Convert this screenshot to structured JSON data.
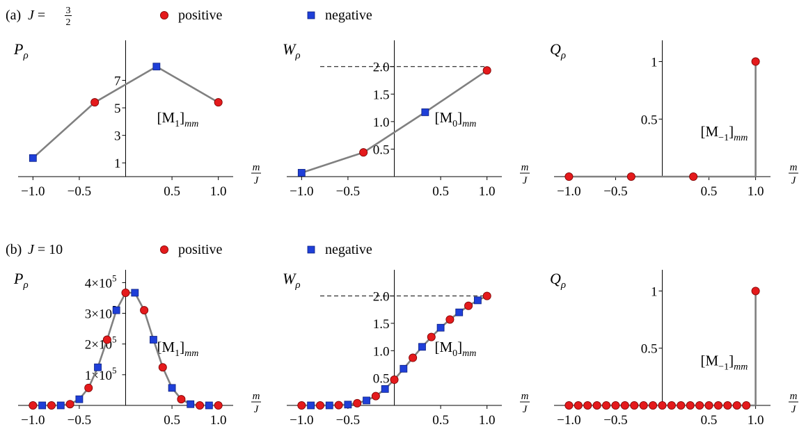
{
  "rows": [
    {
      "label": "(a)",
      "j_text": "J = 3/2",
      "j_value": 1.5,
      "legend": [
        {
          "label": "positive",
          "marker": "circle",
          "color": "#e41a1c"
        },
        {
          "label": "negative",
          "marker": "square",
          "color": "#1f3fd8"
        }
      ]
    },
    {
      "label": "(b)",
      "j_text": "J = 10",
      "j_value": 10,
      "legend": [
        {
          "label": "positive",
          "marker": "circle",
          "color": "#e41a1c"
        },
        {
          "label": "negative",
          "marker": "square",
          "color": "#1f3fd8"
        }
      ]
    }
  ],
  "axis_x_label": {
    "num": "m",
    "den": "J"
  },
  "chart_data": [
    {
      "type": "line",
      "panel": "a-P",
      "ylabel": {
        "main": "P",
        "sub": "ρ"
      },
      "annotation": {
        "main": "[M",
        "sub1": "1",
        "close": "]",
        "sub2": "mm"
      },
      "xlim": [
        -1.1,
        1.1
      ],
      "ylim": [
        0,
        9.2
      ],
      "x_ticks": [
        {
          "v": -1.0,
          "t": "−1.0"
        },
        {
          "v": -0.5,
          "t": "−0.5"
        },
        {
          "v": 0.5,
          "t": "0.5"
        },
        {
          "v": 1.0,
          "t": "1.0"
        }
      ],
      "y_ticks": [
        {
          "v": 1,
          "t": "1"
        },
        {
          "v": 3,
          "t": "3"
        },
        {
          "v": 5,
          "t": "5"
        },
        {
          "v": 7,
          "t": "7"
        }
      ],
      "points": [
        {
          "x": -1.0,
          "y": 1.35,
          "sign": "negative"
        },
        {
          "x": -0.333,
          "y": 5.4,
          "sign": "positive"
        },
        {
          "x": 0.333,
          "y": 8.0,
          "sign": "negative"
        },
        {
          "x": 1.0,
          "y": 5.4,
          "sign": "positive"
        }
      ]
    },
    {
      "type": "line",
      "panel": "a-W",
      "ylabel": {
        "main": "W",
        "sub": "ρ"
      },
      "annotation": {
        "main": "[M",
        "sub1": "0",
        "close": "]",
        "sub2": "mm"
      },
      "xlim": [
        -1.1,
        1.1
      ],
      "ylim": [
        0,
        2.3
      ],
      "reference_line": 2.0,
      "x_ticks": [
        {
          "v": -1.0,
          "t": "−1.0"
        },
        {
          "v": -0.5,
          "t": "−0.5"
        },
        {
          "v": 0.5,
          "t": "0.5"
        },
        {
          "v": 1.0,
          "t": "1.0"
        }
      ],
      "y_ticks": [
        {
          "v": 0.5,
          "t": "0.5"
        },
        {
          "v": 1.0,
          "t": "1.0"
        },
        {
          "v": 1.5,
          "t": "1.5"
        },
        {
          "v": 2.0,
          "t": "2.0"
        }
      ],
      "points": [
        {
          "x": -1.0,
          "y": 0.07,
          "sign": "negative"
        },
        {
          "x": -0.333,
          "y": 0.44,
          "sign": "positive"
        },
        {
          "x": 0.333,
          "y": 1.17,
          "sign": "negative"
        },
        {
          "x": 1.0,
          "y": 1.93,
          "sign": "positive"
        }
      ]
    },
    {
      "type": "scatter",
      "panel": "a-Q",
      "ylabel": {
        "main": "Q",
        "sub": "ρ"
      },
      "annotation": {
        "main": "[M",
        "sub1": "−1",
        "close": "]",
        "sub2": "mm"
      },
      "xlim": [
        -1.1,
        1.1
      ],
      "ylim": [
        0,
        1.1
      ],
      "x_ticks": [
        {
          "v": -1.0,
          "t": "−1.0"
        },
        {
          "v": -0.5,
          "t": "−0.5"
        },
        {
          "v": 0.5,
          "t": "0.5"
        },
        {
          "v": 1.0,
          "t": "1.0"
        }
      ],
      "y_ticks": [
        {
          "v": 0.5,
          "t": "0.5"
        },
        {
          "v": 1,
          "t": "1"
        }
      ],
      "points": [
        {
          "x": -1.0,
          "y": 0,
          "sign": "positive"
        },
        {
          "x": -0.333,
          "y": 0,
          "sign": "positive"
        },
        {
          "x": 0.333,
          "y": 0,
          "sign": "positive"
        },
        {
          "x": 1.0,
          "y": 1,
          "sign": "positive"
        }
      ]
    },
    {
      "type": "line",
      "panel": "b-P",
      "ylabel": {
        "main": "P",
        "sub": "ρ"
      },
      "annotation": {
        "main": "[M",
        "sub1": "1",
        "close": "]",
        "sub2": "mm"
      },
      "xlim": [
        -1.1,
        1.1
      ],
      "ylim": [
        0,
        410000
      ],
      "x_ticks": [
        {
          "v": -1.0,
          "t": "−1.0"
        },
        {
          "v": -0.5,
          "t": "−0.5"
        },
        {
          "v": 0.5,
          "t": "0.5"
        },
        {
          "v": 1.0,
          "t": "1.0"
        }
      ],
      "y_ticks": [
        {
          "v": 100000,
          "t": "1×10",
          "exp": "5"
        },
        {
          "v": 200000,
          "t": "2×10",
          "exp": "5"
        },
        {
          "v": 300000,
          "t": "3×10",
          "exp": "5"
        },
        {
          "v": 400000,
          "t": "4×10",
          "exp": "5"
        }
      ],
      "points": [
        {
          "x": -1.0,
          "y": 0,
          "sign": "positive"
        },
        {
          "x": -0.9,
          "y": 0,
          "sign": "negative"
        },
        {
          "x": -0.8,
          "y": 0,
          "sign": "positive"
        },
        {
          "x": -0.7,
          "y": 0,
          "sign": "negative"
        },
        {
          "x": -0.6,
          "y": 4000,
          "sign": "positive"
        },
        {
          "x": -0.5,
          "y": 20000,
          "sign": "negative"
        },
        {
          "x": -0.4,
          "y": 57000,
          "sign": "positive"
        },
        {
          "x": -0.3,
          "y": 124000,
          "sign": "negative"
        },
        {
          "x": -0.2,
          "y": 214000,
          "sign": "positive"
        },
        {
          "x": -0.1,
          "y": 310000,
          "sign": "negative"
        },
        {
          "x": 0.0,
          "y": 367000,
          "sign": "positive"
        },
        {
          "x": 0.1,
          "y": 367000,
          "sign": "negative"
        },
        {
          "x": 0.2,
          "y": 310000,
          "sign": "positive"
        },
        {
          "x": 0.3,
          "y": 214000,
          "sign": "negative"
        },
        {
          "x": 0.4,
          "y": 124000,
          "sign": "positive"
        },
        {
          "x": 0.5,
          "y": 57000,
          "sign": "negative"
        },
        {
          "x": 0.6,
          "y": 20000,
          "sign": "positive"
        },
        {
          "x": 0.7,
          "y": 4000,
          "sign": "negative"
        },
        {
          "x": 0.8,
          "y": 0,
          "sign": "positive"
        },
        {
          "x": 0.9,
          "y": 0,
          "sign": "negative"
        },
        {
          "x": 1.0,
          "y": 0,
          "sign": "positive"
        }
      ]
    },
    {
      "type": "line",
      "panel": "b-W",
      "ylabel": {
        "main": "W",
        "sub": "ρ"
      },
      "annotation": {
        "main": "[M",
        "sub1": "0",
        "close": "]",
        "sub2": "mm"
      },
      "xlim": [
        -1.1,
        1.1
      ],
      "ylim": [
        0,
        2.3
      ],
      "reference_line": 2.0,
      "x_ticks": [
        {
          "v": -1.0,
          "t": "−1.0"
        },
        {
          "v": -0.5,
          "t": "−0.5"
        },
        {
          "v": 0.5,
          "t": "0.5"
        },
        {
          "v": 1.0,
          "t": "1.0"
        }
      ],
      "y_ticks": [
        {
          "v": 0.5,
          "t": "0.5"
        },
        {
          "v": 1.0,
          "t": "1.0"
        },
        {
          "v": 1.5,
          "t": "1.5"
        },
        {
          "v": 2.0,
          "t": "2.0"
        }
      ],
      "points": [
        {
          "x": -1.0,
          "y": 0,
          "sign": "positive"
        },
        {
          "x": -0.9,
          "y": 0,
          "sign": "negative"
        },
        {
          "x": -0.8,
          "y": 0,
          "sign": "positive"
        },
        {
          "x": -0.7,
          "y": 0,
          "sign": "negative"
        },
        {
          "x": -0.6,
          "y": 0.005,
          "sign": "positive"
        },
        {
          "x": -0.5,
          "y": 0.015,
          "sign": "negative"
        },
        {
          "x": -0.4,
          "y": 0.04,
          "sign": "positive"
        },
        {
          "x": -0.3,
          "y": 0.09,
          "sign": "negative"
        },
        {
          "x": -0.2,
          "y": 0.17,
          "sign": "positive"
        },
        {
          "x": -0.1,
          "y": 0.3,
          "sign": "negative"
        },
        {
          "x": 0.0,
          "y": 0.47,
          "sign": "positive"
        },
        {
          "x": 0.1,
          "y": 0.67,
          "sign": "negative"
        },
        {
          "x": 0.2,
          "y": 0.87,
          "sign": "positive"
        },
        {
          "x": 0.3,
          "y": 1.07,
          "sign": "negative"
        },
        {
          "x": 0.4,
          "y": 1.25,
          "sign": "positive"
        },
        {
          "x": 0.5,
          "y": 1.42,
          "sign": "negative"
        },
        {
          "x": 0.6,
          "y": 1.57,
          "sign": "positive"
        },
        {
          "x": 0.7,
          "y": 1.7,
          "sign": "negative"
        },
        {
          "x": 0.8,
          "y": 1.82,
          "sign": "positive"
        },
        {
          "x": 0.9,
          "y": 1.92,
          "sign": "negative"
        },
        {
          "x": 1.0,
          "y": 2.0,
          "sign": "positive"
        }
      ]
    },
    {
      "type": "scatter",
      "panel": "b-Q",
      "ylabel": {
        "main": "Q",
        "sub": "ρ"
      },
      "annotation": {
        "main": "[M",
        "sub1": "−1",
        "close": "]",
        "sub2": "mm"
      },
      "xlim": [
        -1.1,
        1.1
      ],
      "ylim": [
        0,
        1.1
      ],
      "x_ticks": [
        {
          "v": -1.0,
          "t": "−1.0"
        },
        {
          "v": -0.5,
          "t": "−0.5"
        },
        {
          "v": 0.5,
          "t": "0.5"
        },
        {
          "v": 1.0,
          "t": "1.0"
        }
      ],
      "y_ticks": [
        {
          "v": 0.5,
          "t": "0.5"
        },
        {
          "v": 1,
          "t": "1"
        }
      ],
      "points": [
        {
          "x": -1.0,
          "y": 0,
          "sign": "positive"
        },
        {
          "x": -0.9,
          "y": 0,
          "sign": "positive"
        },
        {
          "x": -0.8,
          "y": 0,
          "sign": "positive"
        },
        {
          "x": -0.7,
          "y": 0,
          "sign": "positive"
        },
        {
          "x": -0.6,
          "y": 0,
          "sign": "positive"
        },
        {
          "x": -0.5,
          "y": 0,
          "sign": "positive"
        },
        {
          "x": -0.4,
          "y": 0,
          "sign": "positive"
        },
        {
          "x": -0.3,
          "y": 0,
          "sign": "positive"
        },
        {
          "x": -0.2,
          "y": 0,
          "sign": "positive"
        },
        {
          "x": -0.1,
          "y": 0,
          "sign": "positive"
        },
        {
          "x": 0.0,
          "y": 0,
          "sign": "positive"
        },
        {
          "x": 0.1,
          "y": 0,
          "sign": "positive"
        },
        {
          "x": 0.2,
          "y": 0,
          "sign": "positive"
        },
        {
          "x": 0.3,
          "y": 0,
          "sign": "positive"
        },
        {
          "x": 0.4,
          "y": 0,
          "sign": "positive"
        },
        {
          "x": 0.5,
          "y": 0,
          "sign": "positive"
        },
        {
          "x": 0.6,
          "y": 0,
          "sign": "positive"
        },
        {
          "x": 0.7,
          "y": 0,
          "sign": "positive"
        },
        {
          "x": 0.8,
          "y": 0,
          "sign": "positive"
        },
        {
          "x": 0.9,
          "y": 0,
          "sign": "positive"
        },
        {
          "x": 1.0,
          "y": 1,
          "sign": "positive"
        }
      ]
    }
  ]
}
